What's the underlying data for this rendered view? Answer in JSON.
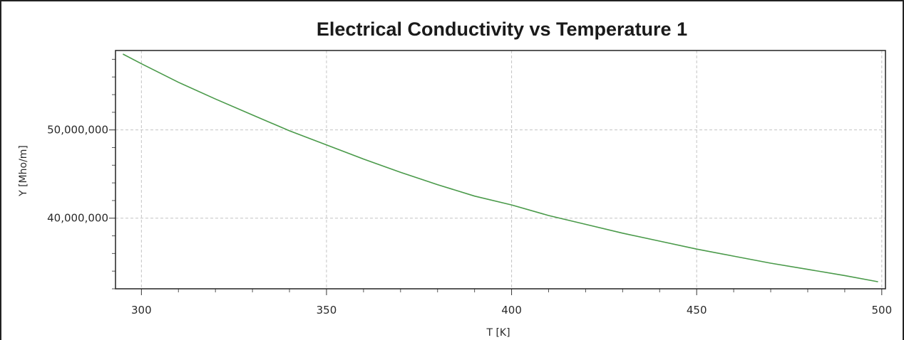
{
  "chart_data": {
    "type": "line",
    "title": "Electrical Conductivity vs Temperature 1",
    "xlabel": "T [K]",
    "ylabel": "Y [Mho/m]",
    "xlim": [
      293,
      501
    ],
    "ylim": [
      32000000,
      59000000
    ],
    "x_ticks": [
      300,
      350,
      400,
      450,
      500
    ],
    "x_tick_labels": [
      "300",
      "350",
      "400",
      "450",
      "500"
    ],
    "y_ticks": [
      40000000,
      50000000
    ],
    "y_tick_labels": [
      "40,000,000",
      "50,000,000"
    ],
    "grid": true,
    "series": [
      {
        "color": "#4a9a4a",
        "x": [
          295,
          300,
          310,
          320,
          330,
          340,
          350,
          360,
          370,
          380,
          390,
          400,
          410,
          420,
          430,
          440,
          450,
          460,
          470,
          480,
          490,
          499
        ],
        "y": [
          58600000,
          57500000,
          55400000,
          53500000,
          51700000,
          49900000,
          48300000,
          46700000,
          45200000,
          43800000,
          42500000,
          41500000,
          40300000,
          39300000,
          38300000,
          37400000,
          36500000,
          35700000,
          34900000,
          34200000,
          33500000,
          32800000
        ]
      }
    ]
  }
}
